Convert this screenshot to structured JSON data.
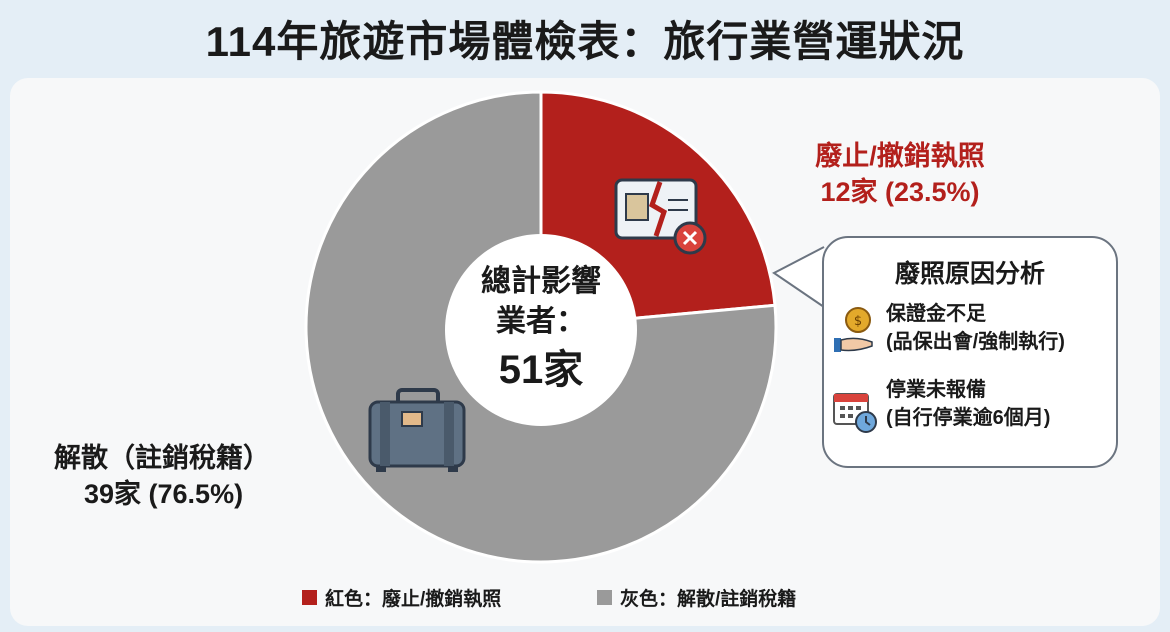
{
  "title": "114年旅遊市場體檢表：旅行業營運狀況",
  "chart_data": {
    "type": "pie",
    "donut": true,
    "total_label": [
      "總計影響",
      "業者："
    ],
    "total_value": "51家",
    "slices": [
      {
        "name": "廢止/撤銷執照",
        "value": 12,
        "percent": 23.5,
        "value_label": "12家 (23.5%)",
        "color": "#b3201c"
      },
      {
        "name": "解散（註銷稅籍）",
        "value": 39,
        "percent": 76.5,
        "value_label": "39家 (76.5%)",
        "color": "#9a9a9a"
      }
    ],
    "legend": [
      {
        "label": "紅色：廢止/撤銷執照",
        "color": "#b3201c"
      },
      {
        "label": "灰色：解散/註銷稅籍",
        "color": "#9a9a9a"
      }
    ],
    "legend_position": "bottom"
  },
  "callout": {
    "title": "廢照原因分析",
    "reasons": [
      {
        "icon": "coin-hand-icon",
        "title": "保證金不足",
        "detail": "(品保出會/強制執行)"
      },
      {
        "icon": "calendar-clock-icon",
        "title": "停業未報備",
        "detail": "(自行停業逾6個月)"
      }
    ]
  }
}
